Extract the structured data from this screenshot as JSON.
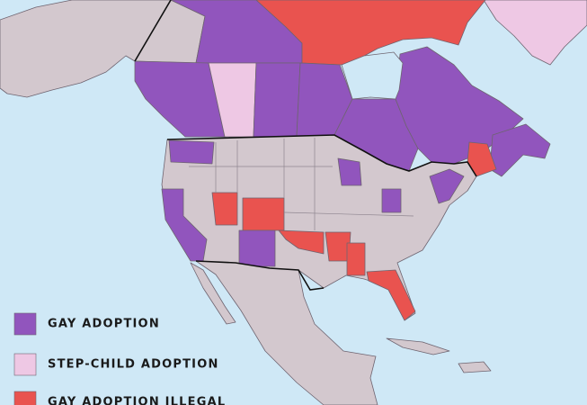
{
  "legend": {
    "items": [
      {
        "label": "GAY ADOPTION",
        "color": "#9155bd"
      },
      {
        "label": "STEP-CHILD ADOPTION",
        "color": "#eec8e4"
      },
      {
        "label": "GAY ADOPTION ILLEGAL",
        "color": "#e9534f"
      }
    ]
  }
}
